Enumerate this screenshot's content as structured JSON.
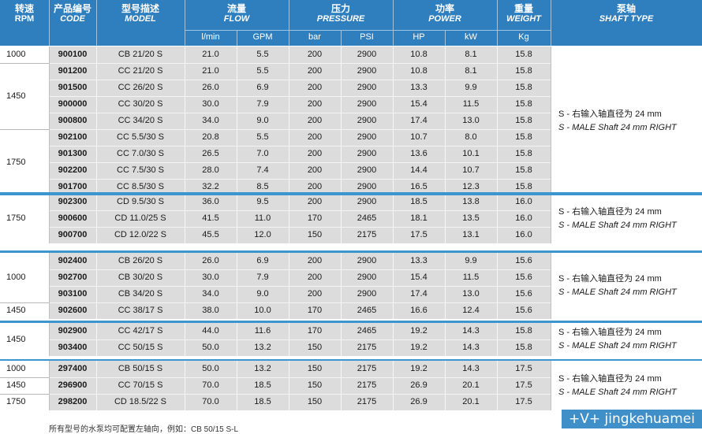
{
  "header": {
    "rpm": {
      "cn": "转速",
      "en": "RPM"
    },
    "code": {
      "cn": "产品编号",
      "en": "CODE"
    },
    "model": {
      "cn": "型号描述",
      "en": "MODEL"
    },
    "flow": {
      "cn": "流量",
      "en": "FLOW"
    },
    "pressure": {
      "cn": "压力",
      "en": "PRESSURE"
    },
    "power": {
      "cn": "功率",
      "en": "POWER"
    },
    "weight": {
      "cn": "重量",
      "en": "WEIGHT"
    },
    "shaft": {
      "cn": "泵轴",
      "en": "SHAFT TYPE"
    },
    "units": [
      "l/min",
      "GPM",
      "bar",
      "PSI",
      "HP",
      "kW",
      "Kg"
    ]
  },
  "colors": {
    "header": "#2f7fbf",
    "shade": "#dcdcdc",
    "separator": "#3b95cf"
  },
  "shaft_text": {
    "cn": "S - 右输入轴直径为 24 mm",
    "en": "S - MALE Shaft 24 mm RIGHT"
  },
  "blocks": [
    {
      "rpm_groups": [
        {
          "label": "1000",
          "rows": 1
        },
        {
          "label": "1450",
          "rows": 4
        },
        {
          "label": "1750",
          "rows": 4
        }
      ],
      "rows": [
        [
          "900100",
          "CB 21/20 S",
          "21.0",
          "5.5",
          "200",
          "2900",
          "10.8",
          "8.1",
          "15.8"
        ],
        [
          "901200",
          "CC 21/20 S",
          "21.0",
          "5.5",
          "200",
          "2900",
          "10.8",
          "8.1",
          "15.8"
        ],
        [
          "901500",
          "CC 26/20 S",
          "26.0",
          "6.9",
          "200",
          "2900",
          "13.3",
          "9.9",
          "15.8"
        ],
        [
          "900000",
          "CC 30/20 S",
          "30.0",
          "7.9",
          "200",
          "2900",
          "15.4",
          "11.5",
          "15.8"
        ],
        [
          "900800",
          "CC 34/20 S",
          "34.0",
          "9.0",
          "200",
          "2900",
          "17.4",
          "13.0",
          "15.8"
        ],
        [
          "902100",
          "CC 5.5/30 S",
          "20.8",
          "5.5",
          "200",
          "2900",
          "10.7",
          "8.0",
          "15.8"
        ],
        [
          "901300",
          "CC 7.0/30 S",
          "26.5",
          "7.0",
          "200",
          "2900",
          "13.6",
          "10.1",
          "15.8"
        ],
        [
          "902200",
          "CC 7.5/30 S",
          "28.0",
          "7.4",
          "200",
          "2900",
          "14.4",
          "10.7",
          "15.8"
        ],
        [
          "901700",
          "CC 8.5/30 S",
          "32.2",
          "8.5",
          "200",
          "2900",
          "16.5",
          "12.3",
          "15.8"
        ]
      ]
    },
    {
      "rpm_groups": [
        {
          "label": "1750",
          "rows": 3
        }
      ],
      "rows": [
        [
          "902300",
          "CD 9.5/30 S",
          "36.0",
          "9.5",
          "200",
          "2900",
          "18.5",
          "13.8",
          "16.0"
        ],
        [
          "900600",
          "CD 11.0/25 S",
          "41.5",
          "11.0",
          "170",
          "2465",
          "18.1",
          "13.5",
          "16.0"
        ],
        [
          "900700",
          "CD 12.0/22 S",
          "45.5",
          "12.0",
          "150",
          "2175",
          "17.5",
          "13.1",
          "16.0"
        ]
      ]
    },
    {
      "rpm_groups": [
        {
          "label": "1000",
          "rows": 3
        },
        {
          "label": "1450",
          "rows": 1
        }
      ],
      "rows": [
        [
          "902400",
          "CB 26/20 S",
          "26.0",
          "6.9",
          "200",
          "2900",
          "13.3",
          "9.9",
          "15.6"
        ],
        [
          "902700",
          "CB 30/20 S",
          "30.0",
          "7.9",
          "200",
          "2900",
          "15.4",
          "11.5",
          "15.6"
        ],
        [
          "903100",
          "CB 34/20 S",
          "34.0",
          "9.0",
          "200",
          "2900",
          "17.4",
          "13.0",
          "15.6"
        ],
        [
          "902600",
          "CC 38/17 S",
          "38.0",
          "10.0",
          "170",
          "2465",
          "16.6",
          "12.4",
          "15.6"
        ]
      ]
    },
    {
      "rpm_groups": [
        {
          "label": "1450",
          "rows": 2
        }
      ],
      "rows": [
        [
          "902900",
          "CC 42/17 S",
          "44.0",
          "11.6",
          "170",
          "2465",
          "19.2",
          "14.3",
          "15.8"
        ],
        [
          "903400",
          "CC 50/15 S",
          "50.0",
          "13.2",
          "150",
          "2175",
          "19.2",
          "14.3",
          "15.8"
        ]
      ]
    },
    {
      "rpm_groups": [
        {
          "label": "1000",
          "rows": 1
        },
        {
          "label": "1450",
          "rows": 1
        },
        {
          "label": "1750",
          "rows": 1
        }
      ],
      "rows": [
        [
          "297400",
          "CB 50/15 S",
          "50.0",
          "13.2",
          "150",
          "2175",
          "19.2",
          "14.3",
          "17.5"
        ],
        [
          "296900",
          "CC 70/15 S",
          "70.0",
          "18.5",
          "150",
          "2175",
          "26.9",
          "20.1",
          "17.5"
        ],
        [
          "298200",
          "CD 18.5/22 S",
          "70.0",
          "18.5",
          "150",
          "2175",
          "26.9",
          "20.1",
          "17.5"
        ]
      ]
    }
  ],
  "footnote": "所有型号的水泵均可配置左轴向，例如：CB 50/15 S-L",
  "watermark": "+V+ jingkehuamei"
}
